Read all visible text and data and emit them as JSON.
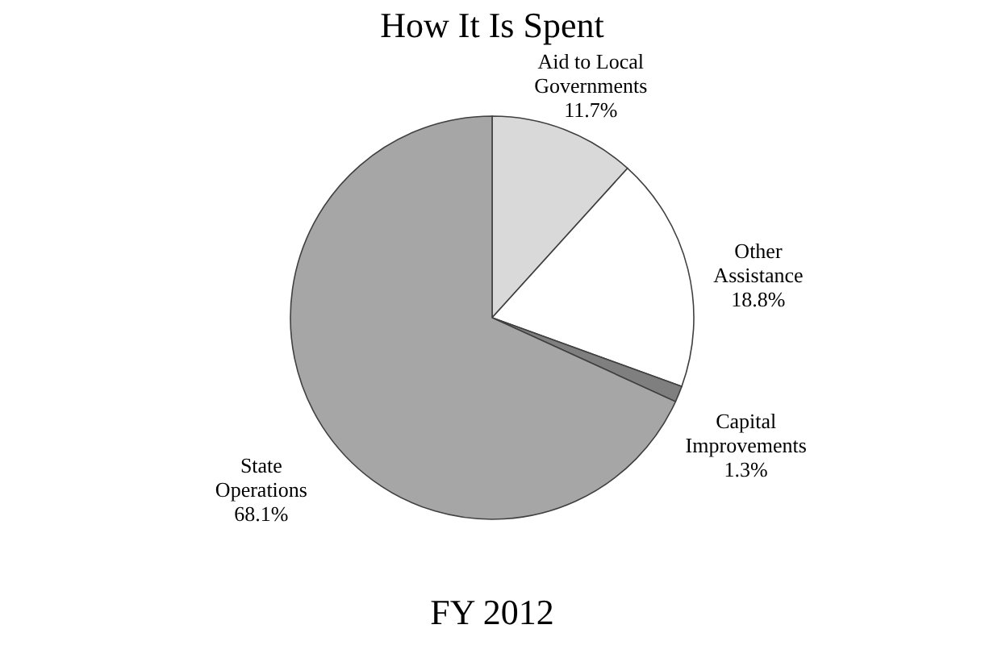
{
  "chart_data": {
    "type": "pie",
    "title": "How It Is Spent",
    "categories": [
      "Aid to Local Governments",
      "Other Assistance",
      "Capital Improvements",
      "State Operations"
    ],
    "values": [
      11.7,
      18.8,
      1.3,
      68.1
    ],
    "value_labels": [
      "11.7%",
      "18.8%",
      "1.3%",
      "68.1%"
    ],
    "colors": [
      "#d9d9d9",
      "#ffffff",
      "#7f7f7f",
      "#a6a6a6"
    ],
    "annotations": [
      "FY 2012"
    ],
    "legend": false
  }
}
